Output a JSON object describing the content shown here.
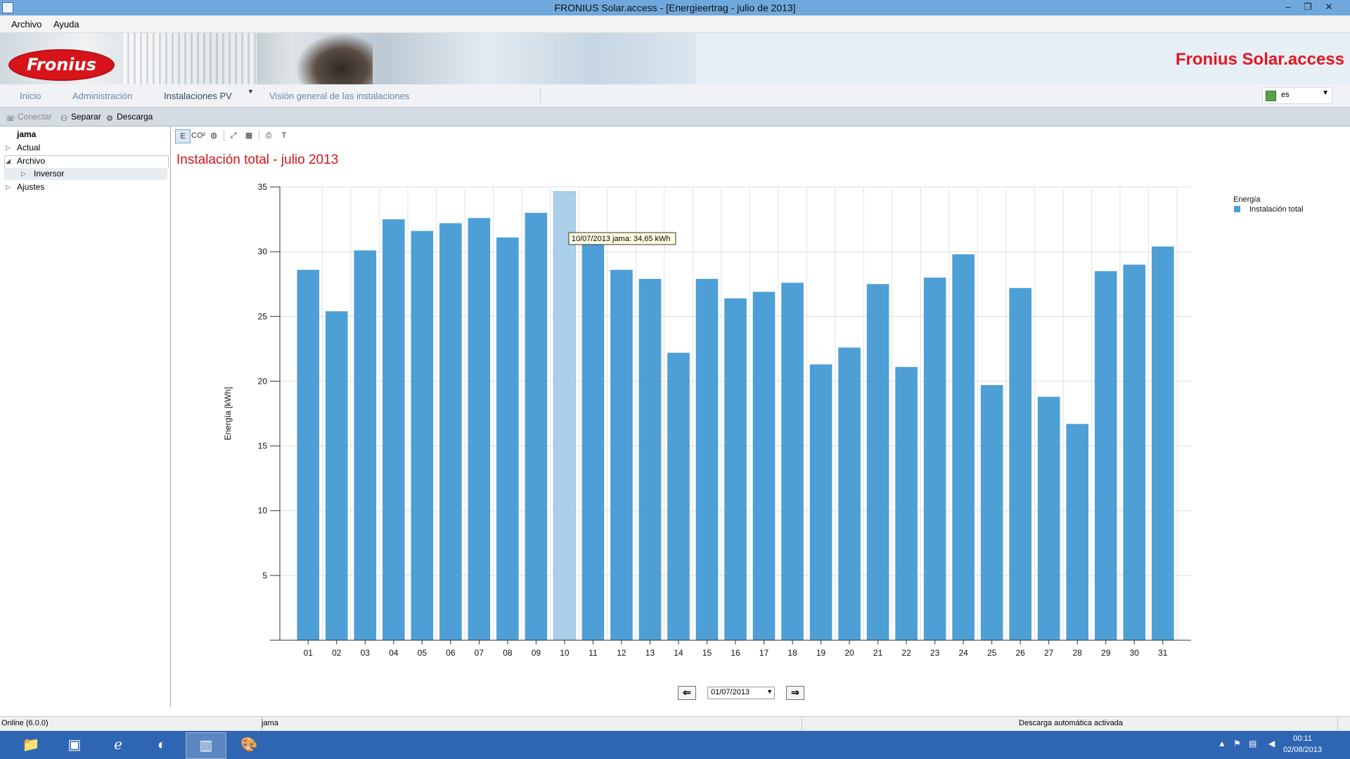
{
  "window": {
    "title": "FRONIUS Solar.access - [Energieertrag - julio de 2013]"
  },
  "menu": {
    "items": [
      "Archivo",
      "Ayuda"
    ]
  },
  "banner": {
    "logo_text": "Fronius",
    "brand": "Fronius Solar.access"
  },
  "nav": {
    "tabs": [
      "Inicio",
      "Administración",
      "Instalaciones PV",
      "Visión general de las instalaciones"
    ],
    "language": "es"
  },
  "toolbar": {
    "connect": "Conectar",
    "disconnect": "Separar",
    "download": "Descarga"
  },
  "tree": {
    "root": "jama",
    "items": [
      "Actual",
      "Archivo",
      "Inversor",
      "Ajustes"
    ]
  },
  "content": {
    "chart_tool_labels": [
      "E",
      "CO²",
      "T"
    ]
  },
  "chart_data": {
    "type": "bar",
    "title": "Instalación total - julio 2013",
    "ylabel": "Energía [kWh]",
    "xlabel": "",
    "ylim": [
      0,
      35
    ],
    "yticks": [
      5,
      10,
      15,
      20,
      25,
      30,
      35
    ],
    "grid": true,
    "legend": {
      "title": "Energía",
      "placement": "top-right"
    },
    "categories": [
      "01",
      "02",
      "03",
      "04",
      "05",
      "06",
      "07",
      "08",
      "09",
      "10",
      "11",
      "12",
      "13",
      "14",
      "15",
      "16",
      "17",
      "18",
      "19",
      "20",
      "21",
      "22",
      "23",
      "24",
      "25",
      "26",
      "27",
      "28",
      "29",
      "30",
      "31"
    ],
    "series": [
      {
        "name": "Instalación total",
        "color": "#4d9fd6",
        "values": [
          28.6,
          25.4,
          30.1,
          32.5,
          31.6,
          32.2,
          32.6,
          31.1,
          33.0,
          34.65,
          31.3,
          28.6,
          27.9,
          22.2,
          27.9,
          26.4,
          26.9,
          27.6,
          21.3,
          22.6,
          27.5,
          21.1,
          28.0,
          29.8,
          19.7,
          27.2,
          18.8,
          16.7,
          28.5,
          29.0,
          30.4
        ]
      }
    ],
    "tooltip": {
      "category": "10",
      "text": "10/07/2013 jama: 34,65 kWh"
    }
  },
  "date_nav": {
    "date": "01/07/2013"
  },
  "status": {
    "left": "Online (6.0.0)",
    "middle": "jama",
    "right": "Descarga automática activada"
  },
  "clock": {
    "time": "00:11",
    "date": "02/08/2013"
  }
}
